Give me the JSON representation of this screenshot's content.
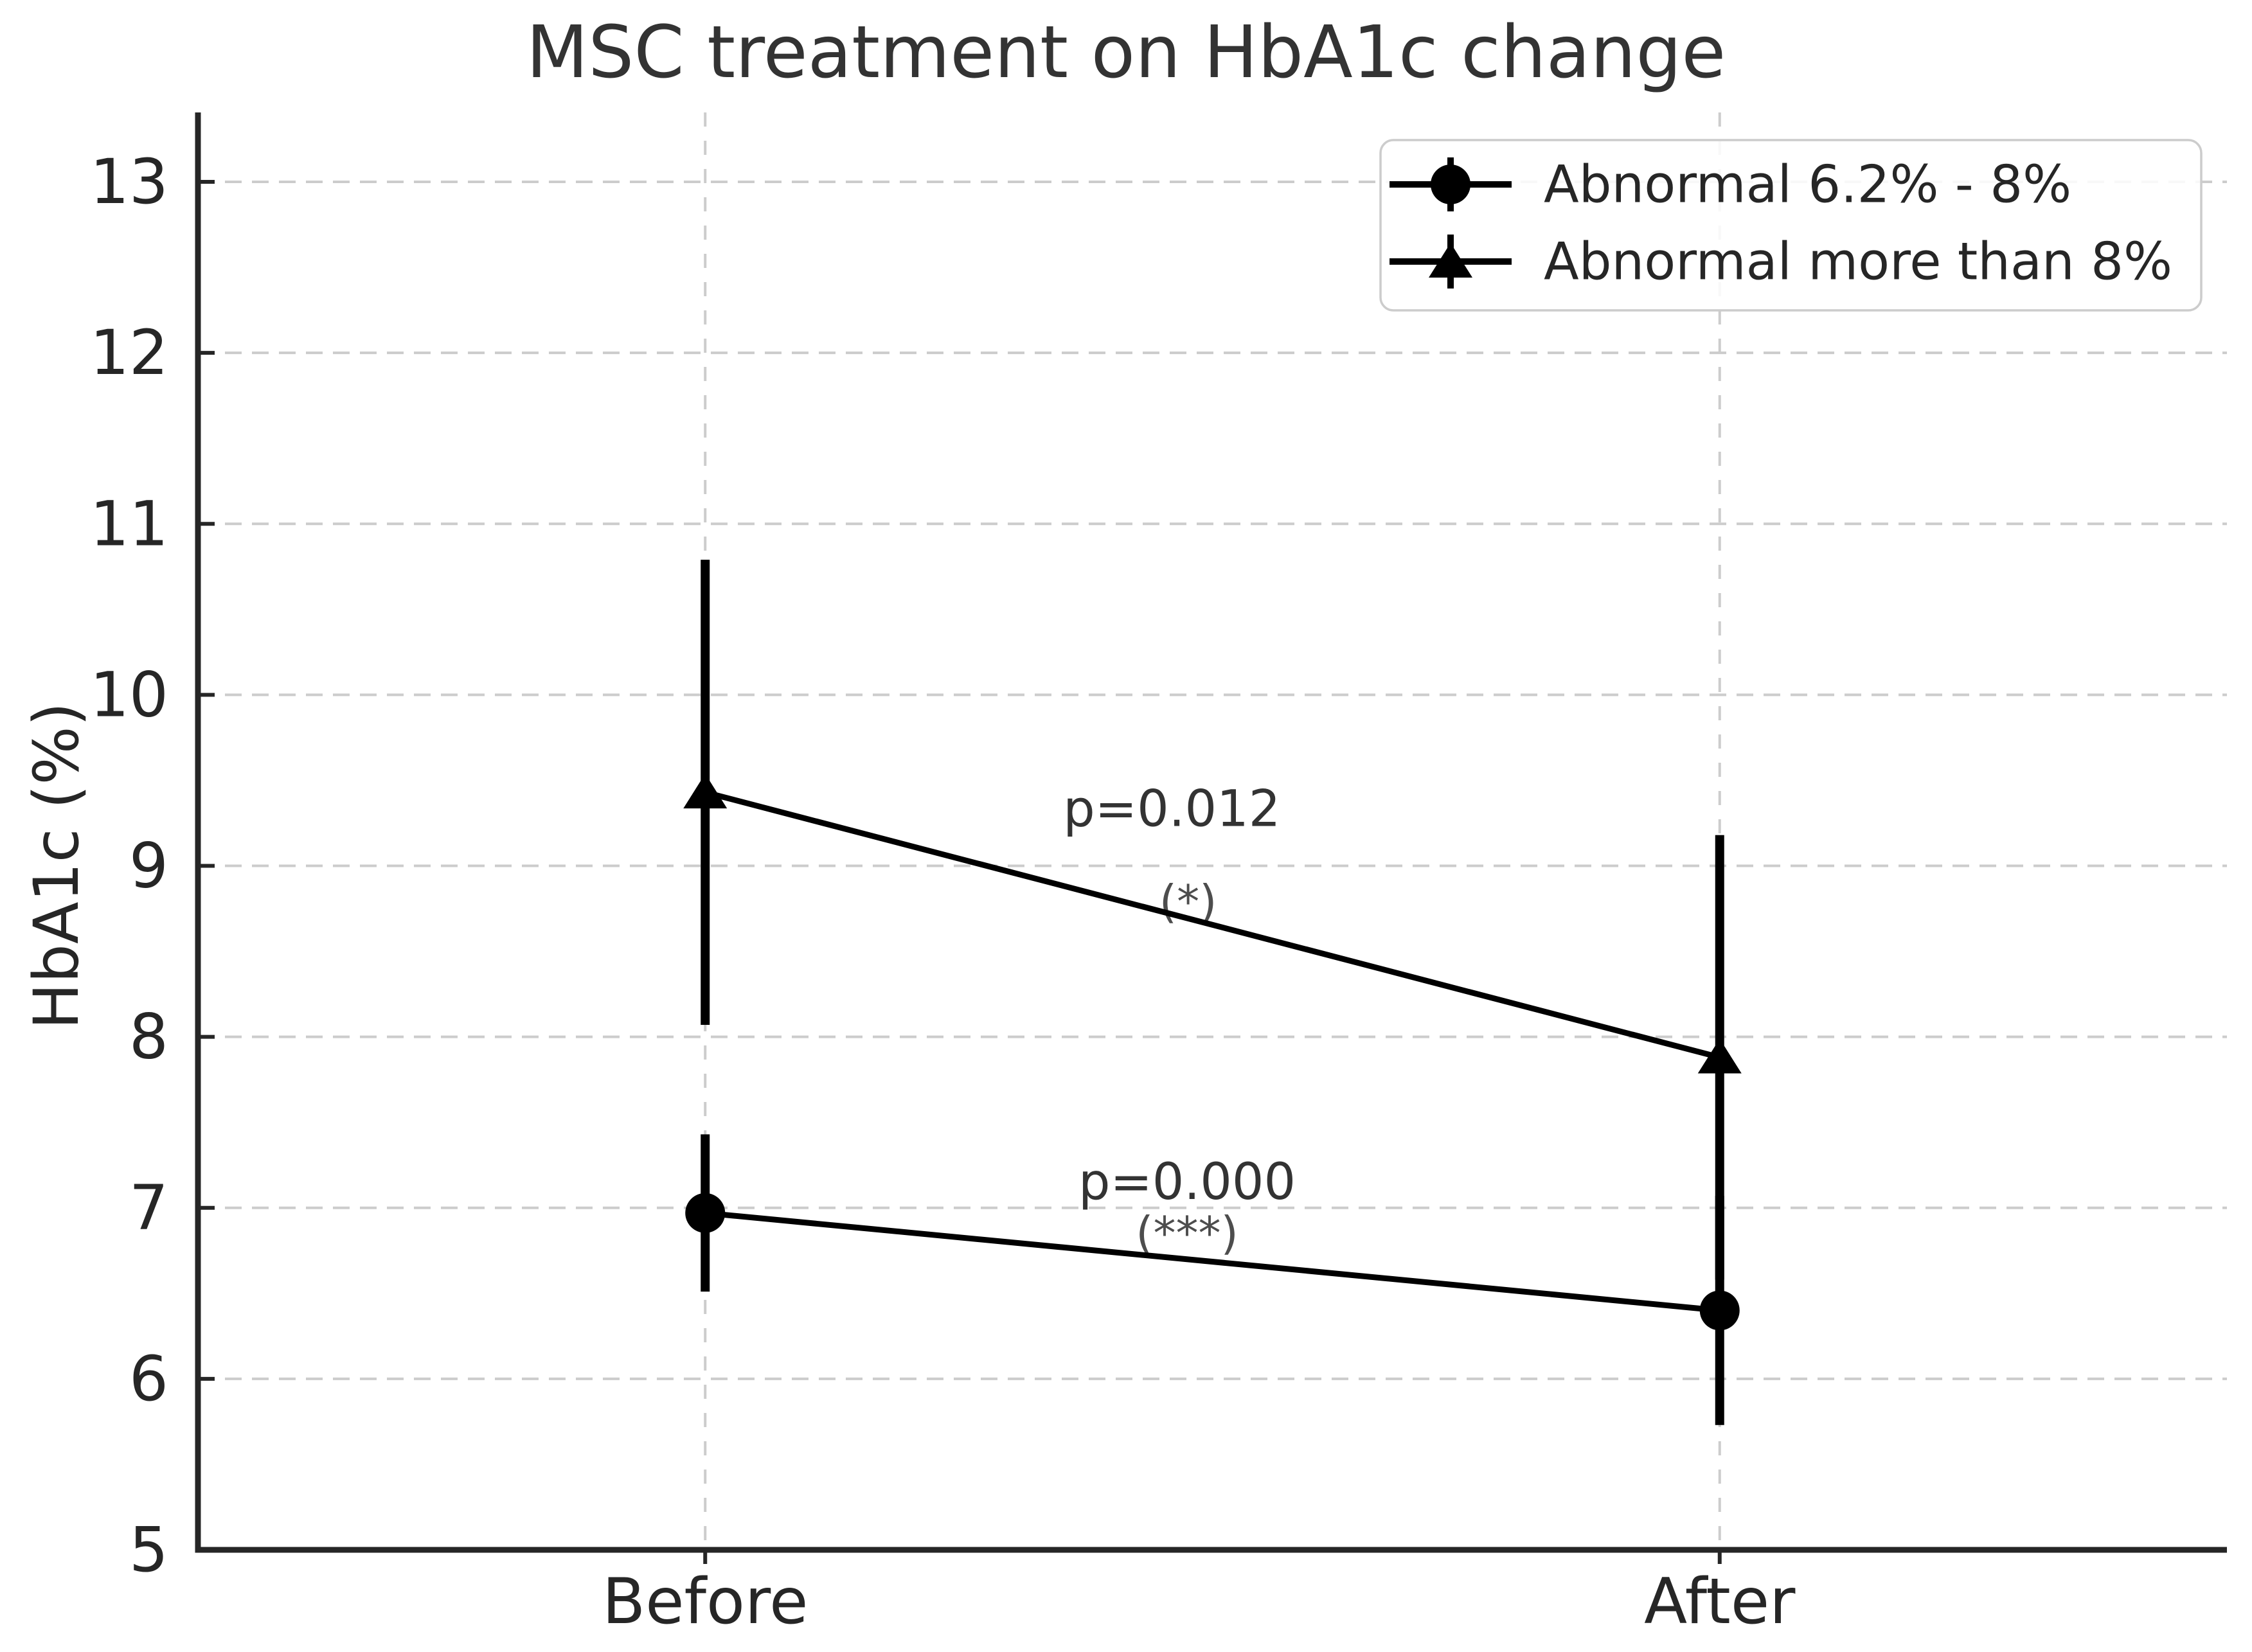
{
  "chart_data": {
    "type": "line",
    "title": "MSC treatment on HbA1c change",
    "xlabel": "",
    "ylabel": "HbA1c (%)",
    "categories": [
      "Before",
      "After"
    ],
    "ylim": [
      5,
      13
    ],
    "yticks": [
      5,
      6,
      7,
      8,
      9,
      10,
      11,
      12,
      13
    ],
    "grid": "dashed horizontal gridlines at each integer and dashed vertical gridlines at each category",
    "legend_position": "upper right",
    "series": [
      {
        "name": "Abnormal 6.2% - 8%",
        "marker": "circle",
        "values": [
          6.97,
          6.4
        ],
        "errors": [
          0.46,
          0.67
        ]
      },
      {
        "name": "Abnormal more than 8%",
        "marker": "triangle",
        "values": [
          9.43,
          7.88
        ],
        "errors": [
          1.36,
          1.3
        ]
      }
    ],
    "annotations": [
      {
        "text": "p=0.012",
        "x": 0.46,
        "y": 9.33,
        "color": "#333333"
      },
      {
        "text": "(*)",
        "x": 0.476,
        "y": 8.79,
        "color": "#4d4d4d"
      },
      {
        "text": "p=0.000",
        "x": 0.475,
        "y": 7.15,
        "color": "#333333"
      },
      {
        "text": "(***)",
        "x": 0.475,
        "y": 6.85,
        "color": "#4d4d4d"
      }
    ],
    "colors": {
      "data": "#000000",
      "text": "#262626",
      "grid": "#cccccc",
      "legend_border": "#cccccc",
      "background": "#ffffff"
    }
  }
}
